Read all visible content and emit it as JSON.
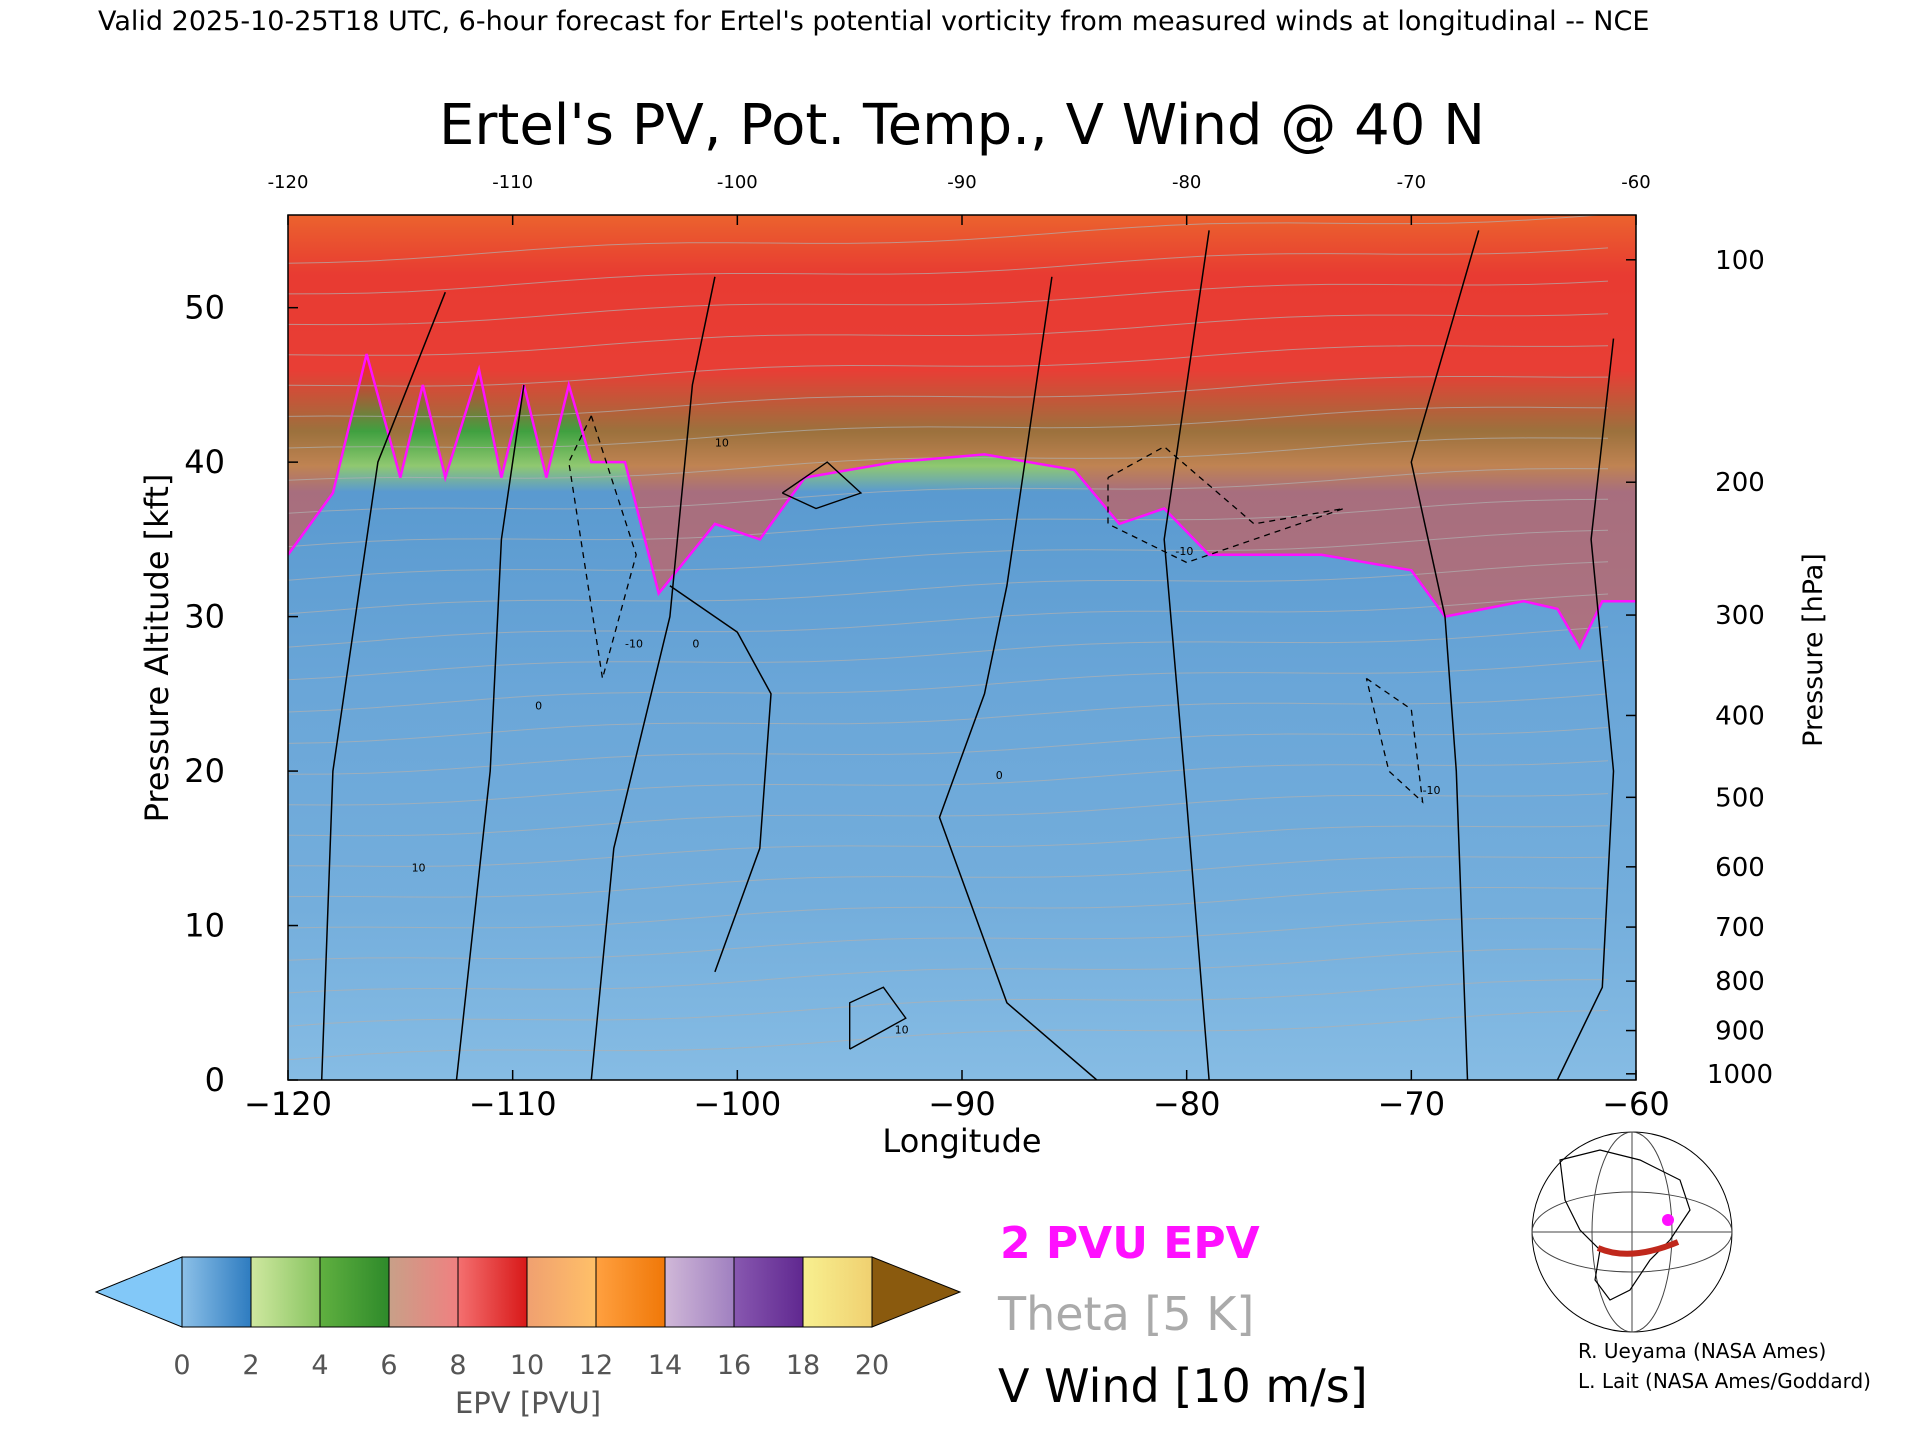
{
  "header": "Valid 2025-10-25T18 UTC, 6-hour forecast for Ertel's potential vorticity from measured winds at longitudinal -- NCE",
  "chart_data": {
    "type": "heatmap",
    "title": "Ertel's PV, Pot. Temp., V Wind @ 40 N",
    "xlabel": "Longitude",
    "ylabel": "Pressure Altitude [kft]",
    "y2label": "Pressure [hPa]",
    "xlim": [
      -120,
      -60
    ],
    "ylim": [
      0,
      56
    ],
    "x_ticks": [
      -120,
      -110,
      -100,
      -90,
      -80,
      -70,
      -60
    ],
    "x_tick_labels": [
      "−120",
      "−110",
      "−100",
      "−90",
      "−80",
      "−70",
      "−60"
    ],
    "top_tick_labels": [
      "-120",
      "-110",
      "-100",
      "-90",
      "-80",
      "-70",
      "-60"
    ],
    "y_ticks": [
      0,
      10,
      20,
      30,
      40,
      50
    ],
    "y_tick_labels": [
      "0",
      "10",
      "20",
      "30",
      "40",
      "50"
    ],
    "pressure_ticks": [
      {
        "hpa": 100,
        "kft": 53.1,
        "label": "100"
      },
      {
        "hpa": 200,
        "kft": 38.7,
        "label": "200"
      },
      {
        "hpa": 300,
        "kft": 30.1,
        "label": "300"
      },
      {
        "hpa": 400,
        "kft": 23.6,
        "label": "400"
      },
      {
        "hpa": 500,
        "kft": 18.3,
        "label": "500"
      },
      {
        "hpa": 600,
        "kft": 13.8,
        "label": "600"
      },
      {
        "hpa": 700,
        "kft": 9.9,
        "label": "700"
      },
      {
        "hpa": 800,
        "kft": 6.4,
        "label": "800"
      },
      {
        "hpa": 900,
        "kft": 3.2,
        "label": "900"
      },
      {
        "hpa": 1000,
        "kft": 0.4,
        "label": "1000"
      }
    ],
    "tropopause_2pvu_kft": [
      {
        "lon": -120,
        "kft": 34
      },
      {
        "lon": -118,
        "kft": 38
      },
      {
        "lon": -116.5,
        "kft": 47
      },
      {
        "lon": -115,
        "kft": 39
      },
      {
        "lon": -114,
        "kft": 45
      },
      {
        "lon": -113,
        "kft": 39
      },
      {
        "lon": -111.5,
        "kft": 46
      },
      {
        "lon": -110.5,
        "kft": 39
      },
      {
        "lon": -109.5,
        "kft": 45
      },
      {
        "lon": -108.5,
        "kft": 39
      },
      {
        "lon": -107.5,
        "kft": 45
      },
      {
        "lon": -106.5,
        "kft": 40
      },
      {
        "lon": -105,
        "kft": 40
      },
      {
        "lon": -103.5,
        "kft": 31.5
      },
      {
        "lon": -101,
        "kft": 36
      },
      {
        "lon": -99,
        "kft": 35
      },
      {
        "lon": -97,
        "kft": 39
      },
      {
        "lon": -93,
        "kft": 40
      },
      {
        "lon": -89,
        "kft": 40.5
      },
      {
        "lon": -85,
        "kft": 39.5
      },
      {
        "lon": -83,
        "kft": 36
      },
      {
        "lon": -81,
        "kft": 37
      },
      {
        "lon": -79,
        "kft": 34
      },
      {
        "lon": -74,
        "kft": 34
      },
      {
        "lon": -70,
        "kft": 33
      },
      {
        "lon": -68.5,
        "kft": 30
      },
      {
        "lon": -65,
        "kft": 31
      },
      {
        "lon": -63.5,
        "kft": 30.5
      },
      {
        "lon": -62.5,
        "kft": 28
      },
      {
        "lon": -61.5,
        "kft": 31
      },
      {
        "lon": -60,
        "kft": 31
      }
    ],
    "vwind_zero_contours": [
      [
        {
          "lon": -118.5,
          "kft": 0
        },
        {
          "lon": -118,
          "kft": 20
        },
        {
          "lon": -116,
          "kft": 40
        },
        {
          "lon": -113,
          "kft": 51
        }
      ],
      [
        {
          "lon": -112.5,
          "kft": 0
        },
        {
          "lon": -111,
          "kft": 20
        },
        {
          "lon": -110.5,
          "kft": 35
        },
        {
          "lon": -109.5,
          "kft": 45
        }
      ],
      [
        {
          "lon": -106.5,
          "kft": 0
        },
        {
          "lon": -105.5,
          "kft": 15
        },
        {
          "lon": -103,
          "kft": 30
        },
        {
          "lon": -102,
          "kft": 45
        },
        {
          "lon": -101,
          "kft": 52
        }
      ],
      [
        {
          "lon": -101,
          "kft": 7
        },
        {
          "lon": -99,
          "kft": 15
        },
        {
          "lon": -98.5,
          "kft": 25
        },
        {
          "lon": -100,
          "kft": 29
        },
        {
          "lon": -103,
          "kft": 32
        }
      ],
      [
        {
          "lon": -84,
          "kft": 0
        },
        {
          "lon": -88,
          "kft": 5
        },
        {
          "lon": -91,
          "kft": 17
        },
        {
          "lon": -89,
          "kft": 25
        },
        {
          "lon": -88,
          "kft": 32
        },
        {
          "lon": -87,
          "kft": 42
        },
        {
          "lon": -86,
          "kft": 52
        }
      ],
      [
        {
          "lon": -79,
          "kft": 0
        },
        {
          "lon": -80,
          "kft": 18
        },
        {
          "lon": -81,
          "kft": 35
        },
        {
          "lon": -80,
          "kft": 45
        },
        {
          "lon": -79,
          "kft": 55
        }
      ],
      [
        {
          "lon": -67.5,
          "kft": 0
        },
        {
          "lon": -68,
          "kft": 20
        },
        {
          "lon": -68.5,
          "kft": 30
        },
        {
          "lon": -70,
          "kft": 40
        },
        {
          "lon": -68,
          "kft": 50
        },
        {
          "lon": -67,
          "kft": 55
        }
      ],
      [
        {
          "lon": -63.5,
          "kft": 0
        },
        {
          "lon": -61.5,
          "kft": 6
        },
        {
          "lon": -61,
          "kft": 20
        },
        {
          "lon": -62,
          "kft": 35
        },
        {
          "lon": -61,
          "kft": 48
        }
      ]
    ],
    "vwind_neg10_contours": [
      [
        {
          "lon": -106.5,
          "kft": 43
        },
        {
          "lon": -104.5,
          "kft": 34
        },
        {
          "lon": -106,
          "kft": 26
        },
        {
          "lon": -107.5,
          "kft": 40
        },
        {
          "lon": -106.5,
          "kft": 43
        }
      ],
      [
        {
          "lon": -83.5,
          "kft": 39
        },
        {
          "lon": -81,
          "kft": 41
        },
        {
          "lon": -77,
          "kft": 36
        },
        {
          "lon": -73,
          "kft": 37
        },
        {
          "lon": -80,
          "kft": 33.5
        },
        {
          "lon": -83.5,
          "kft": 36
        },
        {
          "lon": -83.5,
          "kft": 39
        }
      ],
      [
        {
          "lon": -72,
          "kft": 26
        },
        {
          "lon": -70,
          "kft": 24
        },
        {
          "lon": -69.5,
          "kft": 18
        },
        {
          "lon": -71,
          "kft": 20
        },
        {
          "lon": -72,
          "kft": 26
        }
      ]
    ],
    "vwind_pos10_contours": [
      [
        {
          "lon": -95,
          "kft": 2
        },
        {
          "lon": -92.5,
          "kft": 4
        },
        {
          "lon": -93.5,
          "kft": 6
        },
        {
          "lon": -95,
          "kft": 5
        },
        {
          "lon": -95,
          "kft": 2
        }
      ],
      [
        {
          "lon": -98,
          "kft": 38
        },
        {
          "lon": -96,
          "kft": 40
        },
        {
          "lon": -94.5,
          "kft": 38
        },
        {
          "lon": -96.5,
          "kft": 37
        },
        {
          "lon": -98,
          "kft": 38
        }
      ]
    ],
    "contour_labels": [
      {
        "text": "0",
        "lon": -109,
        "kft": 24
      },
      {
        "text": "0",
        "lon": -102,
        "kft": 28
      },
      {
        "text": "10",
        "lon": -101,
        "kft": 41
      },
      {
        "text": "-10",
        "lon": -105,
        "kft": 28
      },
      {
        "text": "0",
        "lon": -88.5,
        "kft": 19.5
      },
      {
        "text": "-10",
        "lon": -80.5,
        "kft": 34
      },
      {
        "text": "-10",
        "lon": -69.5,
        "kft": 18.5
      },
      {
        "text": "10",
        "lon": -93,
        "kft": 3
      },
      {
        "text": "10",
        "lon": -114.5,
        "kft": 13.5
      }
    ],
    "colorbar": {
      "label": "EPV [PVU]",
      "ticks": [
        "0",
        "2",
        "4",
        "6",
        "8",
        "10",
        "12",
        "14",
        "16",
        "18",
        "20"
      ],
      "under_color": "#82c8f8",
      "over_color": "#8a5a0e",
      "segments": [
        {
          "from": 0,
          "to": 2,
          "colors": [
            "#8cc0e8",
            "#2e7cc0"
          ]
        },
        {
          "from": 2,
          "to": 4,
          "colors": [
            "#cfe8a0",
            "#88c460"
          ]
        },
        {
          "from": 4,
          "to": 6,
          "colors": [
            "#60b040",
            "#2e8a2a"
          ]
        },
        {
          "from": 6,
          "to": 8,
          "colors": [
            "#c8a088",
            "#f08080"
          ]
        },
        {
          "from": 8,
          "to": 10,
          "colors": [
            "#f47070",
            "#d81818"
          ]
        },
        {
          "from": 10,
          "to": 12,
          "colors": [
            "#f0a070",
            "#ffc068"
          ]
        },
        {
          "from": 12,
          "to": 14,
          "colors": [
            "#ffa040",
            "#f07808"
          ]
        },
        {
          "from": 14,
          "to": 16,
          "colors": [
            "#d0b8d8",
            "#a080c0"
          ]
        },
        {
          "from": 16,
          "to": 18,
          "colors": [
            "#8858b0",
            "#602890"
          ]
        },
        {
          "from": 18,
          "to": 20,
          "colors": [
            "#f8f090",
            "#f0d070"
          ]
        }
      ]
    },
    "legend": [
      {
        "text": "2 PVU EPV",
        "color": "#ff10ff"
      },
      {
        "text": "Theta [5 K]",
        "color": "#aaaaaa"
      },
      {
        "text": "V Wind [10 m/s]",
        "color": "#000000"
      }
    ]
  },
  "credits": [
    "R. Ueyama (NASA Ames)",
    "L. Lait (NASA Ames/Goddard)"
  ]
}
